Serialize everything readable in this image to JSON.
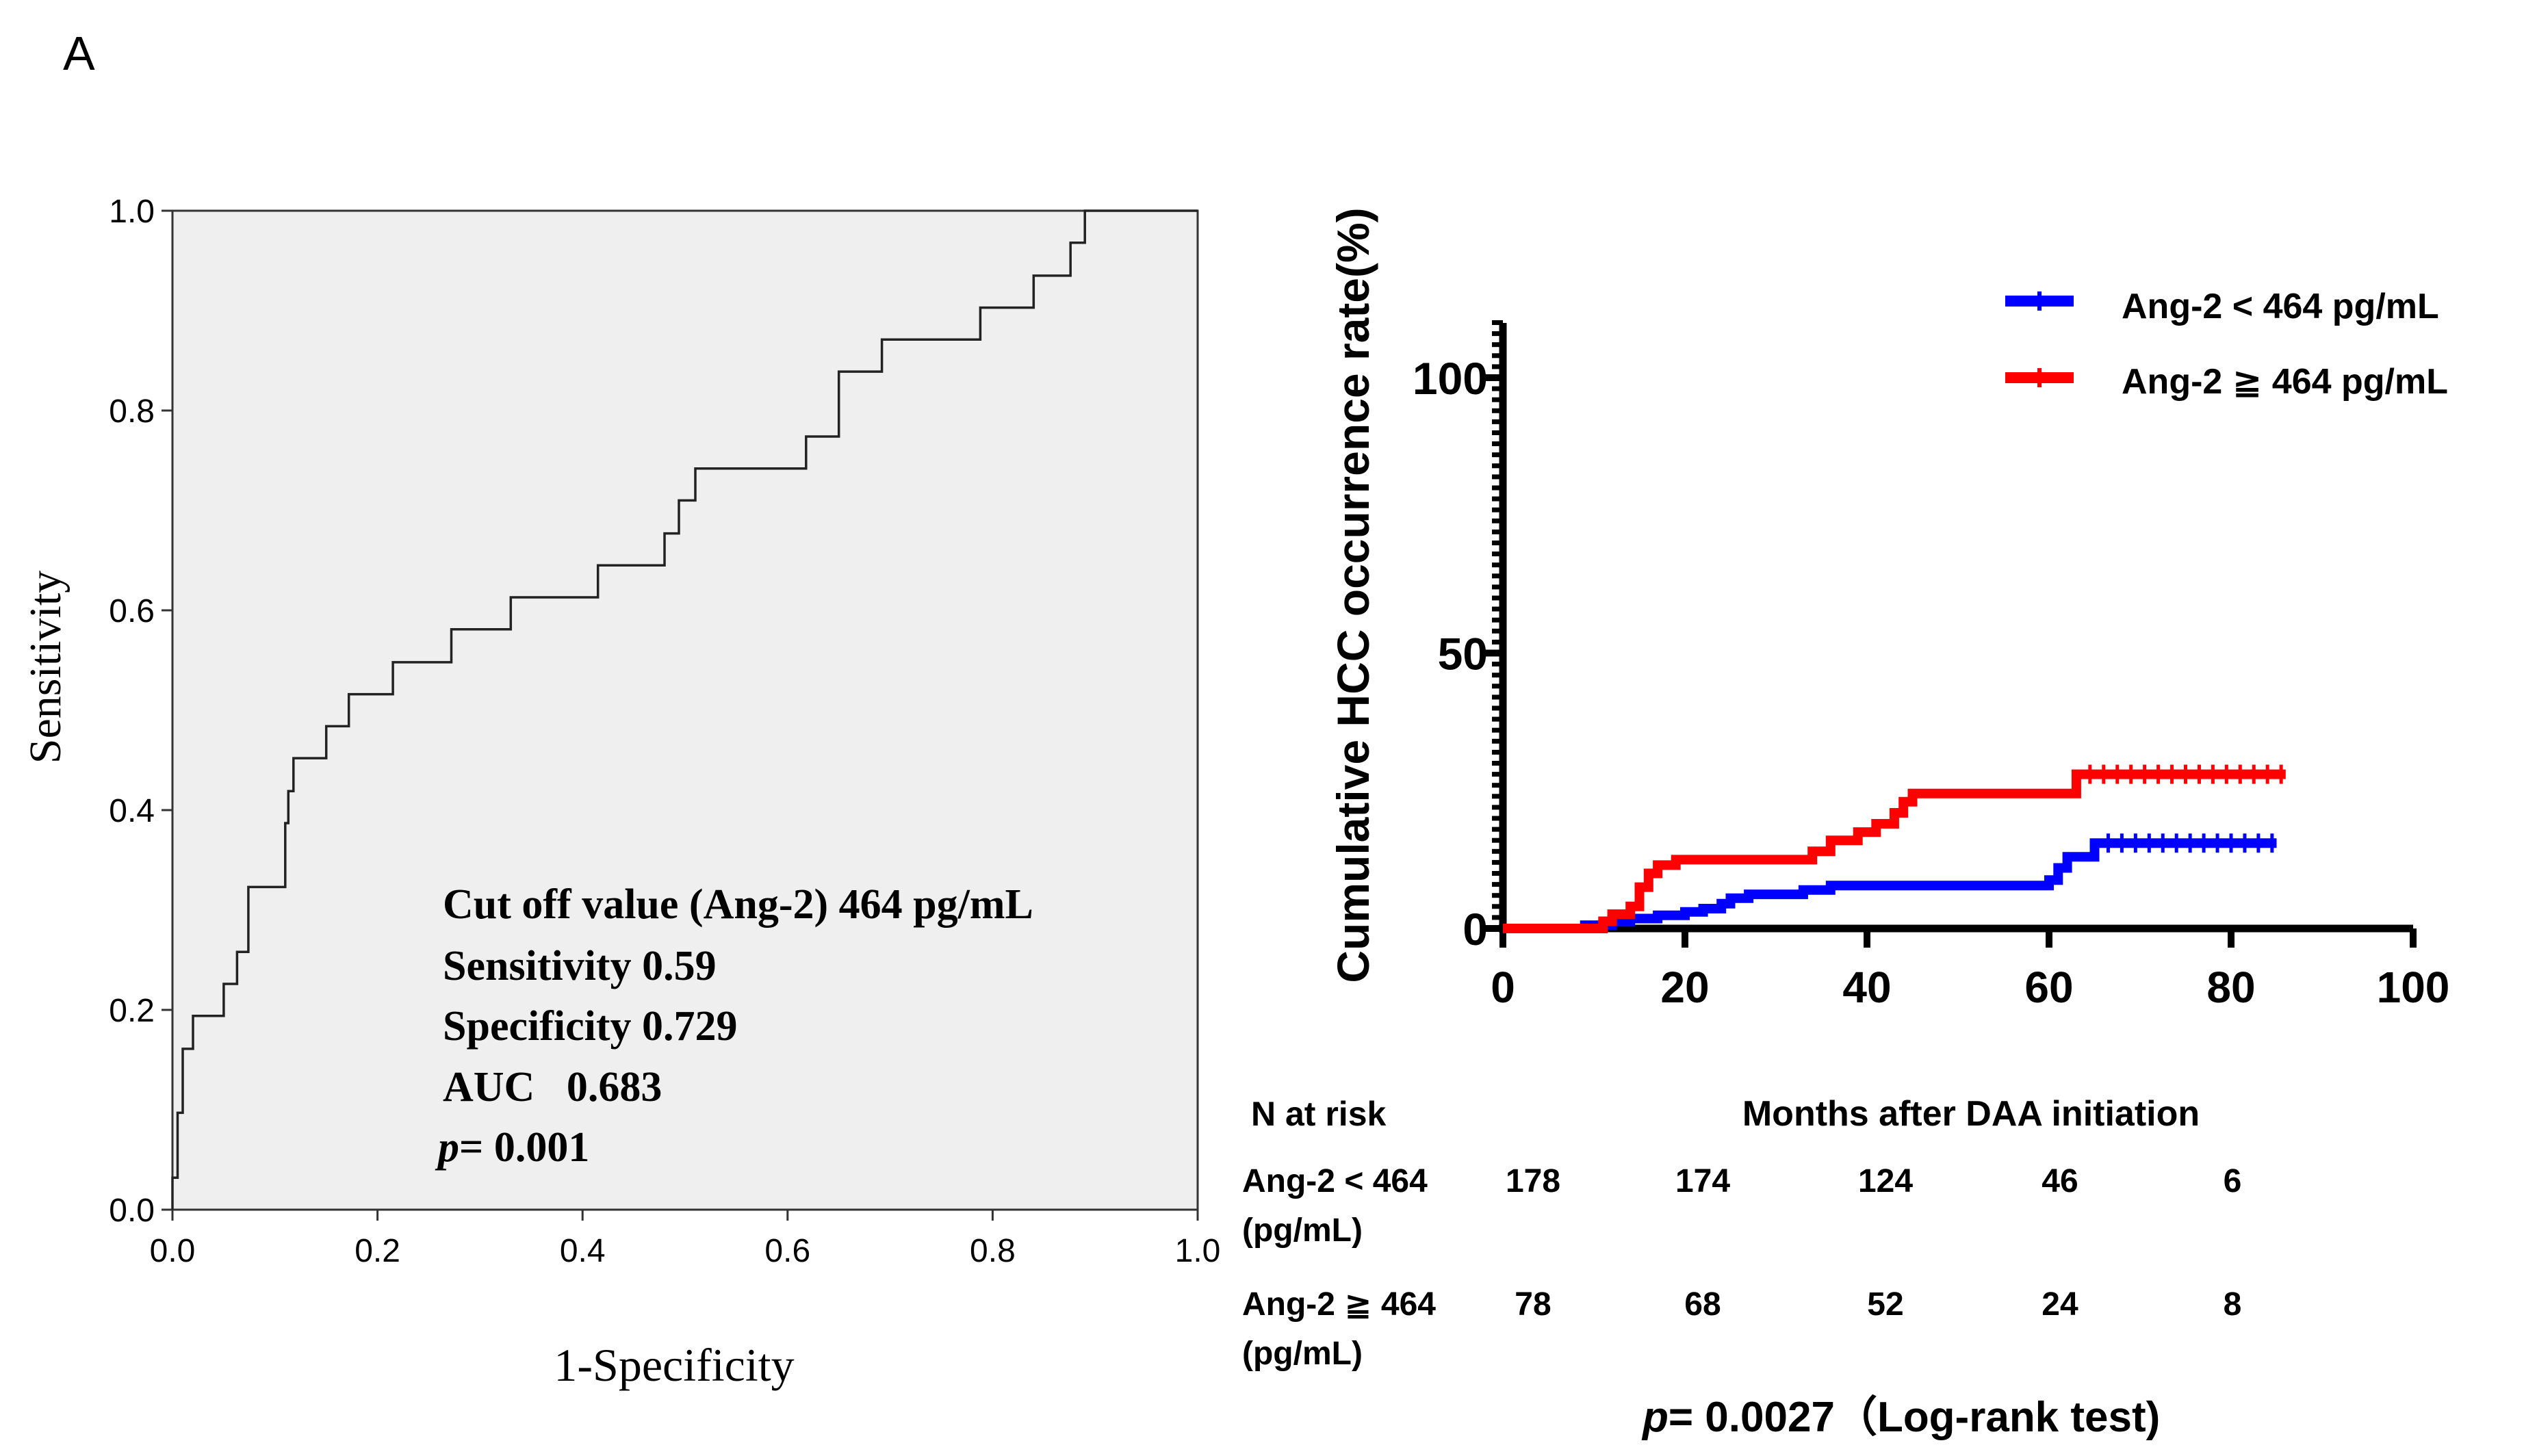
{
  "panel_label": "A",
  "chart_data": [
    {
      "type": "line",
      "title": "",
      "xlabel": "1-Specificity",
      "ylabel": "Sensitivity",
      "xlim": [
        0,
        1
      ],
      "ylim": [
        0,
        1
      ],
      "x_ticks": [
        "0.0",
        "0.2",
        "0.4",
        "0.6",
        "0.8",
        "1.0"
      ],
      "y_ticks": [
        "0.0",
        "0.2",
        "0.4",
        "0.6",
        "0.8",
        "1.0"
      ],
      "grid": false,
      "series": [
        {
          "name": "",
          "points": [
            [
              0.0,
              0.0
            ],
            [
              0.0,
              0.032
            ],
            [
              0.005,
              0.032
            ],
            [
              0.005,
              0.097
            ],
            [
              0.01,
              0.097
            ],
            [
              0.01,
              0.161
            ],
            [
              0.02,
              0.161
            ],
            [
              0.02,
              0.194
            ],
            [
              0.05,
              0.194
            ],
            [
              0.05,
              0.226
            ],
            [
              0.063,
              0.226
            ],
            [
              0.063,
              0.258
            ],
            [
              0.074,
              0.258
            ],
            [
              0.074,
              0.323
            ],
            [
              0.11,
              0.323
            ],
            [
              0.11,
              0.387
            ],
            [
              0.113,
              0.387
            ],
            [
              0.113,
              0.419
            ],
            [
              0.118,
              0.419
            ],
            [
              0.118,
              0.452
            ],
            [
              0.15,
              0.452
            ],
            [
              0.15,
              0.484
            ],
            [
              0.172,
              0.484
            ],
            [
              0.172,
              0.516
            ],
            [
              0.215,
              0.516
            ],
            [
              0.215,
              0.548
            ],
            [
              0.272,
              0.548
            ],
            [
              0.272,
              0.581
            ],
            [
              0.33,
              0.581
            ],
            [
              0.33,
              0.613
            ],
            [
              0.415,
              0.613
            ],
            [
              0.415,
              0.645
            ],
            [
              0.48,
              0.645
            ],
            [
              0.48,
              0.677
            ],
            [
              0.494,
              0.677
            ],
            [
              0.494,
              0.71
            ],
            [
              0.51,
              0.71
            ],
            [
              0.51,
              0.742
            ],
            [
              0.618,
              0.742
            ],
            [
              0.618,
              0.774
            ],
            [
              0.65,
              0.774
            ],
            [
              0.65,
              0.839
            ],
            [
              0.692,
              0.839
            ],
            [
              0.692,
              0.871
            ],
            [
              0.788,
              0.871
            ],
            [
              0.788,
              0.903
            ],
            [
              0.84,
              0.903
            ],
            [
              0.84,
              0.935
            ],
            [
              0.876,
              0.935
            ],
            [
              0.876,
              0.968
            ],
            [
              0.89,
              0.968
            ],
            [
              0.89,
              1.0
            ],
            [
              1.0,
              1.0
            ]
          ]
        }
      ],
      "annotations": [
        "Cut off value (Ang-2) 464 pg/mL",
        "Sensitivity 0.59",
        "Specificity 0.729",
        "AUC   0.683",
        "= 0.001"
      ],
      "annotation_p": "p"
    },
    {
      "type": "line",
      "title": "",
      "xlabel": "Months after DAA initiation",
      "ylabel": "Cumulative HCC occurrence rate(%)",
      "xlim": [
        0,
        100
      ],
      "ylim": [
        0,
        110
      ],
      "x_ticks": [
        "0",
        "20",
        "40",
        "60",
        "80",
        "100"
      ],
      "y_ticks": [
        "0",
        "50",
        "100"
      ],
      "grid": false,
      "legend_position": "top-right",
      "series": [
        {
          "name": "Ang-2 < 464 pg/mL",
          "color": "#0000ff",
          "points": [
            [
              0,
              0
            ],
            [
              9,
              0
            ],
            [
              9,
              0.6
            ],
            [
              12,
              0.6
            ],
            [
              12,
              1.2
            ],
            [
              14,
              1.2
            ],
            [
              14,
              1.8
            ],
            [
              17,
              1.8
            ],
            [
              17,
              2.4
            ],
            [
              20,
              2.4
            ],
            [
              20,
              3.0
            ],
            [
              22,
              3.0
            ],
            [
              22,
              3.6
            ],
            [
              24,
              3.6
            ],
            [
              24,
              4.5
            ],
            [
              25,
              4.5
            ],
            [
              25,
              5.5
            ],
            [
              27,
              5.5
            ],
            [
              27,
              6.2
            ],
            [
              33,
              6.2
            ],
            [
              33,
              7.0
            ],
            [
              36,
              7.0
            ],
            [
              36,
              7.8
            ],
            [
              60,
              7.8
            ],
            [
              60,
              8.8
            ],
            [
              61,
              8.8
            ],
            [
              61,
              11.0
            ],
            [
              62,
              11.0
            ],
            [
              62,
              13.0
            ],
            [
              65,
              13.0
            ],
            [
              65,
              15.5
            ],
            [
              85,
              15.5
            ]
          ]
        },
        {
          "name": "Ang-2 ≧ 464 pg/mL",
          "color": "#ff0000",
          "points": [
            [
              0,
              0
            ],
            [
              11,
              0
            ],
            [
              11,
              1.3
            ],
            [
              12,
              1.3
            ],
            [
              12,
              2.6
            ],
            [
              14,
              2.6
            ],
            [
              14,
              4.0
            ],
            [
              15,
              4.0
            ],
            [
              15,
              7.5
            ],
            [
              16,
              7.5
            ],
            [
              16,
              10.0
            ],
            [
              17,
              10.0
            ],
            [
              17,
              11.5
            ],
            [
              19,
              11.5
            ],
            [
              19,
              12.5
            ],
            [
              34,
              12.5
            ],
            [
              34,
              14.0
            ],
            [
              36,
              14.0
            ],
            [
              36,
              16.0
            ],
            [
              39,
              16.0
            ],
            [
              39,
              17.5
            ],
            [
              41,
              17.5
            ],
            [
              41,
              19.0
            ],
            [
              43,
              19.0
            ],
            [
              43,
              21.0
            ],
            [
              44,
              21.0
            ],
            [
              44,
              23.0
            ],
            [
              45,
              23.0
            ],
            [
              45,
              24.5
            ],
            [
              63,
              24.5
            ],
            [
              63,
              28.0
            ],
            [
              86,
              28.0
            ]
          ]
        }
      ],
      "at_risk": {
        "header": "N at risk",
        "times": [
          0,
          20,
          40,
          60,
          80
        ],
        "rows": [
          {
            "label_line1": "Ang-2 < 464",
            "label_line2": "(pg/mL)",
            "values": [
              "178",
              "174",
              "124",
              "46",
              "6"
            ]
          },
          {
            "label_line1": "Ang-2 ≧ 464",
            "label_line2": "(pg/mL)",
            "values": [
              "78",
              "68",
              "52",
              "24",
              "8"
            ]
          }
        ]
      },
      "p_value_p": "p",
      "p_value_rest": "= 0.0027（Log-rank test)"
    }
  ]
}
